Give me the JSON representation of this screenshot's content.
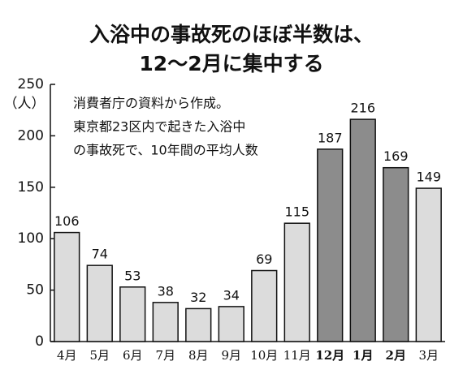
{
  "chart_data": {
    "type": "bar",
    "title": "入浴中の事故死のほぼ半数は、",
    "subtitle": "12～2月に集中する",
    "y_label": "（人）",
    "annotations": [
      "消費者庁の資料から作成。",
      "東京都23区内で起きた入浴中",
      "の事故死で、10年間の平均人数"
    ],
    "categories": [
      "4月",
      "5月",
      "6月",
      "7月",
      "8月",
      "9月",
      "10月",
      "11月",
      "12月",
      "1月",
      "2月",
      "3月"
    ],
    "values": [
      106,
      74,
      53,
      38,
      32,
      34,
      69,
      115,
      187,
      216,
      169,
      149
    ],
    "colors": [
      "#dcdcdc",
      "#dcdcdc",
      "#dcdcdc",
      "#dcdcdc",
      "#dcdcdc",
      "#dcdcdc",
      "#dcdcdc",
      "#dcdcdc",
      "#8c8c8c",
      "#8c8c8c",
      "#8c8c8c",
      "#dcdcdc"
    ],
    "ylim": [
      0,
      250
    ],
    "yticks": [
      0,
      50,
      100,
      150,
      200,
      250
    ],
    "grid": false
  }
}
